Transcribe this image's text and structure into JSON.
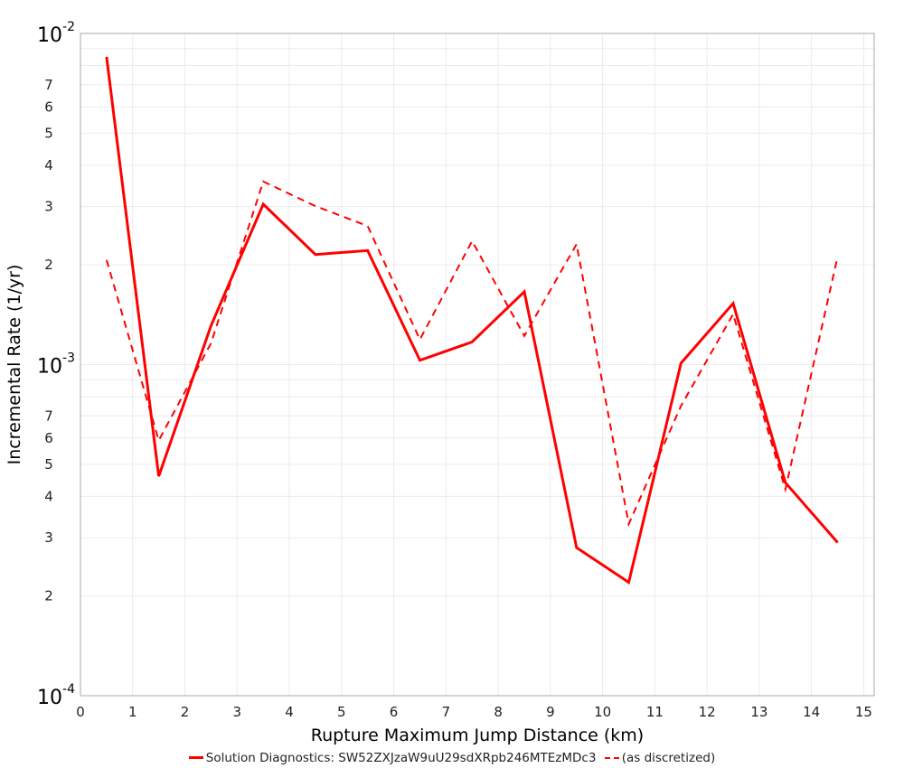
{
  "chart_data": {
    "type": "line",
    "title": "",
    "xlabel": "Rupture Maximum Jump Distance (km)",
    "ylabel": "Incremental Rate (1/yr)",
    "xscale": "linear",
    "yscale": "log",
    "xlim": [
      0,
      15.2
    ],
    "ylim": [
      0.0001,
      0.01
    ],
    "x_ticks": [
      "0",
      "1",
      "2",
      "3",
      "4",
      "5",
      "6",
      "7",
      "8",
      "9",
      "10",
      "11",
      "12",
      "13",
      "14",
      "15"
    ],
    "y_decade_ticks": [
      {
        "base": "10",
        "exp": "-2",
        "value": 0.01
      },
      {
        "base": "10",
        "exp": "-3",
        "value": 0.001
      },
      {
        "base": "10",
        "exp": "-4",
        "value": 0.0001
      }
    ],
    "y_minor_tick_labels": [
      "2",
      "3",
      "4",
      "5",
      "6",
      "7"
    ],
    "grid": true,
    "legend_position": "bottom",
    "x": [
      0.5,
      1.5,
      2.5,
      3.5,
      4.5,
      5.5,
      6.5,
      7.5,
      8.5,
      9.5,
      10.5,
      11.5,
      12.5,
      13.5,
      14.5
    ],
    "series": [
      {
        "name": "Solution Diagnostics: SW52ZXJzaW9uU29sdXRpb246MTEzMDc3",
        "style": "solid",
        "color": "#ff0000",
        "values": [
          0.0085,
          0.00046,
          0.00131,
          0.00305,
          0.00215,
          0.00221,
          0.00103,
          0.00117,
          0.00166,
          0.00028,
          0.00022,
          0.00101,
          0.00153,
          0.00044,
          0.00029
        ]
      },
      {
        "name": "(as discretized)",
        "style": "dashed",
        "color": "#ff0000",
        "values": [
          0.00207,
          0.00059,
          0.00116,
          0.00357,
          0.00301,
          0.00262,
          0.00119,
          0.00236,
          0.00122,
          0.00231,
          0.00033,
          0.00075,
          0.00142,
          0.00042,
          0.00212
        ]
      }
    ]
  }
}
